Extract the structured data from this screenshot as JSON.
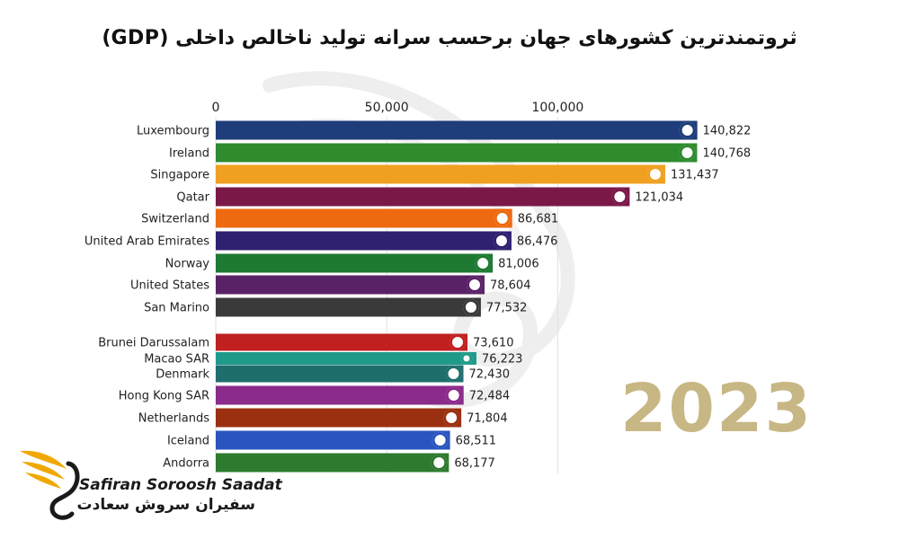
{
  "chart_data": {
    "type": "bar",
    "orientation": "horizontal",
    "title": "ثروتمندترین کشورهای جهان برحسب سرانه تولید ناخالص داخلی (GDP)",
    "xlim": [
      0,
      145000
    ],
    "x_ticks": [
      0,
      50000,
      100000
    ],
    "x_tick_labels": [
      "0",
      "50,000",
      "100,000"
    ],
    "grid": true,
    "year": "2023",
    "bars": [
      {
        "category": "Luxembourg",
        "value": 140822,
        "label": "140,822",
        "color": "#1f3d7a",
        "flag": "luxembourg-flag-icon"
      },
      {
        "category": "Ireland",
        "value": 140768,
        "label": "140,768",
        "color": "#2e8b2e",
        "flag": "ireland-flag-icon"
      },
      {
        "category": "Singapore",
        "value": 131437,
        "label": "131,437",
        "color": "#f0a020",
        "flag": "singapore-flag-icon"
      },
      {
        "category": "Qatar",
        "value": 121034,
        "label": "121,034",
        "color": "#7a1848",
        "flag": "qatar-flag-icon"
      },
      {
        "category": "Switzerland",
        "value": 86681,
        "label": "86,681",
        "color": "#ee6a10",
        "flag": "switzerland-flag-icon"
      },
      {
        "category": "United Arab Emirates",
        "value": 86476,
        "label": "86,476",
        "color": "#2f2070",
        "flag": "uae-flag-icon"
      },
      {
        "category": "Norway",
        "value": 81006,
        "label": "81,006",
        "color": "#1e7a32",
        "flag": "norway-flag-icon"
      },
      {
        "category": "United States",
        "value": 78604,
        "label": "78,604",
        "color": "#5a2266",
        "flag": "usa-flag-icon"
      },
      {
        "category": "San Marino",
        "value": 77532,
        "label": "77,532",
        "color": "#3a3a3a",
        "flag": "san-marino-flag-icon"
      },
      {
        "category": "Brunei Darussalam",
        "value": 73610,
        "label": "73,610",
        "color": "#c02020",
        "flag": "brunei-flag-icon"
      },
      {
        "category": "Macao SAR",
        "value": 76223,
        "label": "76,223",
        "color": "#1f9a8a",
        "flag": "macao-flag-icon"
      },
      {
        "category": "Denmark",
        "value": 72430,
        "label": "72,430",
        "color": "#1f6e6e",
        "flag": "denmark-flag-icon"
      },
      {
        "category": "Hong Kong SAR",
        "value": 72484,
        "label": "72,484",
        "color": "#8a2a8a",
        "flag": "hong-kong-flag-icon"
      },
      {
        "category": "Netherlands",
        "value": 71804,
        "label": "71,804",
        "color": "#9a3010",
        "flag": "netherlands-flag-icon"
      },
      {
        "category": "Iceland",
        "value": 68511,
        "label": "68,511",
        "color": "#2a55c0",
        "flag": "iceland-flag-icon"
      },
      {
        "category": "Andorra",
        "value": 68177,
        "label": "68,177",
        "color": "#2e7a2e",
        "flag": "andorra-flag-icon"
      }
    ]
  },
  "watermark": {
    "icon": "swan-watermark-icon",
    "color": "#cccccc"
  },
  "logo": {
    "icon": "swan-wing-logo-icon",
    "color_wing": "#f0a800",
    "color_dark": "#1a1a1a",
    "brand_en": "Safiran Soroosh Saadat",
    "brand_fa": "سفیران سروش سعادت"
  }
}
